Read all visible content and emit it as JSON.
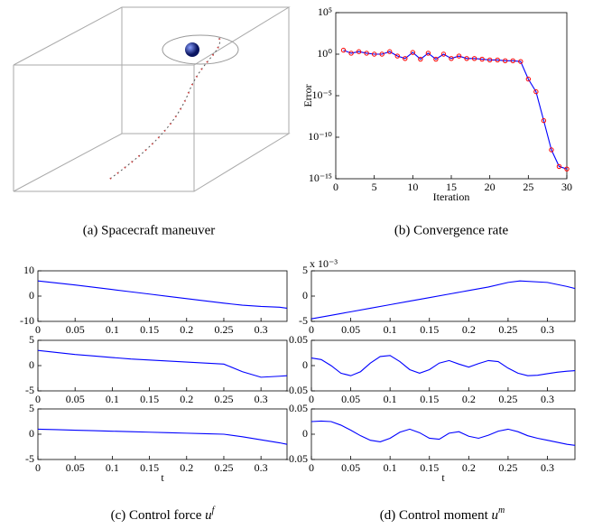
{
  "chart_data": [
    {
      "type": "line",
      "log_y": true,
      "xlabel": "Iteration",
      "ylabel": "Error",
      "color": "#0000ff",
      "marker_color": "#ff0000",
      "x": [
        1,
        2,
        3,
        4,
        5,
        6,
        7,
        8,
        9,
        10,
        11,
        12,
        13,
        14,
        15,
        16,
        17,
        18,
        19,
        20,
        21,
        22,
        23,
        24,
        25,
        26,
        27,
        28,
        29,
        30
      ],
      "values": [
        3,
        1.3,
        2,
        1.3,
        1,
        1,
        2,
        0.6,
        0.3,
        1.6,
        0.25,
        1.3,
        0.25,
        1,
        0.3,
        0.6,
        0.3,
        0.3,
        0.25,
        0.2,
        0.2,
        0.16,
        0.16,
        0.13,
        0.001,
        3e-05,
        1e-08,
        3e-12,
        3e-14,
        1.5e-14
      ],
      "xlim": [
        0,
        30
      ],
      "xticks": [
        0,
        5,
        10,
        15,
        20,
        25,
        30
      ],
      "ylim": [
        1e-15,
        100000
      ],
      "yticks": [
        {
          "value": 1e-15,
          "label": "10⁻¹⁵"
        },
        {
          "value": 1e-10,
          "label": "10⁻¹⁰"
        },
        {
          "value": 1e-05,
          "label": "10⁻⁵"
        },
        {
          "value": 1,
          "label": "10⁰"
        },
        {
          "value": 100000,
          "label": "10⁵"
        }
      ]
    },
    {
      "type": "line",
      "color": "#0000ff",
      "x": [
        0,
        0.025,
        0.05,
        0.075,
        0.1,
        0.125,
        0.15,
        0.175,
        0.2,
        0.225,
        0.25,
        0.275,
        0.3,
        0.325,
        0.335
      ],
      "values": [
        6,
        5.2,
        4.4,
        3.5,
        2.6,
        1.7,
        0.8,
        -0.1,
        -1,
        -1.9,
        -2.8,
        -3.6,
        -4.1,
        -4.4,
        -4.8
      ],
      "xlim": [
        0,
        0.335
      ],
      "xticks": [
        0,
        0.05,
        0.1,
        0.15,
        0.2,
        0.25,
        0.3
      ],
      "ylim": [
        -10,
        10
      ],
      "yticks": [
        -10,
        0,
        10
      ]
    },
    {
      "type": "line",
      "color": "#0000ff",
      "x": [
        0,
        0.025,
        0.05,
        0.075,
        0.1,
        0.125,
        0.15,
        0.175,
        0.2,
        0.225,
        0.25,
        0.275,
        0.3,
        0.325,
        0.335
      ],
      "values": [
        3,
        2.6,
        2.2,
        1.9,
        1.6,
        1.3,
        1.1,
        0.9,
        0.7,
        0.5,
        0.3,
        -1.2,
        -2.3,
        -2.1,
        -2
      ],
      "xlim": [
        0,
        0.335
      ],
      "xticks": [
        0,
        0.05,
        0.1,
        0.15,
        0.2,
        0.25,
        0.3
      ],
      "ylim": [
        -5,
        5
      ],
      "yticks": [
        -5,
        0,
        5
      ]
    },
    {
      "type": "line",
      "color": "#0000ff",
      "xlabel": "t",
      "x": [
        0,
        0.025,
        0.05,
        0.075,
        0.1,
        0.125,
        0.15,
        0.175,
        0.2,
        0.225,
        0.25,
        0.275,
        0.3,
        0.325,
        0.335
      ],
      "values": [
        1,
        0.9,
        0.8,
        0.7,
        0.6,
        0.5,
        0.4,
        0.3,
        0.2,
        0.1,
        0,
        -0.5,
        -1.1,
        -1.7,
        -2
      ],
      "xlim": [
        0,
        0.335
      ],
      "xticks": [
        0,
        0.05,
        0.1,
        0.15,
        0.2,
        0.25,
        0.3
      ],
      "ylim": [
        -5,
        5
      ],
      "yticks": [
        -5,
        0,
        5
      ]
    },
    {
      "type": "line",
      "color": "#0000ff",
      "scale_label": "x 10⁻³",
      "x": [
        0,
        0.025,
        0.05,
        0.075,
        0.1,
        0.125,
        0.15,
        0.175,
        0.2,
        0.225,
        0.25,
        0.265,
        0.3,
        0.325,
        0.335
      ],
      "values": [
        -0.0045,
        -0.0038,
        -0.0031,
        -0.0024,
        -0.0017,
        -0.001,
        -0.0003,
        0.0004,
        0.0011,
        0.0018,
        0.0027,
        0.003,
        0.0027,
        0.0019,
        0.0015
      ],
      "xlim": [
        0,
        0.335
      ],
      "xticks": [
        0,
        0.05,
        0.1,
        0.15,
        0.2,
        0.25,
        0.3
      ],
      "ylim": [
        -0.005,
        0.005
      ],
      "yticks": [
        {
          "value": -0.005,
          "label": "-5"
        },
        0,
        {
          "value": 0.005,
          "label": "5"
        }
      ]
    },
    {
      "type": "line",
      "color": "#0000ff",
      "x": [
        0,
        0.0125,
        0.025,
        0.0375,
        0.05,
        0.0625,
        0.075,
        0.0875,
        0.1,
        0.1125,
        0.125,
        0.1375,
        0.15,
        0.1625,
        0.175,
        0.1875,
        0.2,
        0.2125,
        0.225,
        0.2375,
        0.25,
        0.2625,
        0.275,
        0.2875,
        0.3,
        0.3125,
        0.325,
        0.335
      ],
      "values": [
        0.015,
        0.012,
        0,
        -0.015,
        -0.02,
        -0.012,
        0.005,
        0.018,
        0.02,
        0.008,
        -0.008,
        -0.015,
        -0.008,
        0.005,
        0.01,
        0.003,
        -0.003,
        0.004,
        0.01,
        0.008,
        -0.005,
        -0.015,
        -0.02,
        -0.019,
        -0.016,
        -0.013,
        -0.011,
        -0.01
      ],
      "xlim": [
        0,
        0.335
      ],
      "xticks": [
        0,
        0.05,
        0.1,
        0.15,
        0.2,
        0.25,
        0.3
      ],
      "ylim": [
        -0.05,
        0.05
      ],
      "yticks": [
        -0.05,
        0,
        0.05
      ]
    },
    {
      "type": "line",
      "color": "#0000ff",
      "xlabel": "t",
      "x": [
        0,
        0.0125,
        0.025,
        0.0375,
        0.05,
        0.0625,
        0.075,
        0.0875,
        0.1,
        0.1125,
        0.125,
        0.1375,
        0.15,
        0.1625,
        0.175,
        0.1875,
        0.2,
        0.2125,
        0.225,
        0.2375,
        0.25,
        0.2625,
        0.275,
        0.2875,
        0.3,
        0.3125,
        0.325,
        0.335
      ],
      "values": [
        0.025,
        0.026,
        0.025,
        0.018,
        0.008,
        -0.003,
        -0.012,
        -0.015,
        -0.008,
        0.004,
        0.01,
        0.003,
        -0.008,
        -0.01,
        0.002,
        0.005,
        -0.004,
        -0.008,
        -0.002,
        0.006,
        0.01,
        0.005,
        -0.003,
        -0.008,
        -0.012,
        -0.016,
        -0.02,
        -0.022
      ],
      "xlim": [
        0,
        0.335
      ],
      "xticks": [
        0,
        0.05,
        0.1,
        0.15,
        0.2,
        0.25,
        0.3
      ],
      "ylim": [
        -0.05,
        0.05
      ],
      "yticks": [
        -0.05,
        0,
        0.05
      ]
    }
  ],
  "captions": [
    {
      "text": "(a) Spacecraft maneuver"
    },
    {
      "text": "(b) Convergence rate"
    },
    {
      "text": "(c) Control force",
      "symbol": "u",
      "superscript": "f"
    },
    {
      "text": "(d) Control moment",
      "symbol": "u",
      "superscript": "m"
    }
  ]
}
